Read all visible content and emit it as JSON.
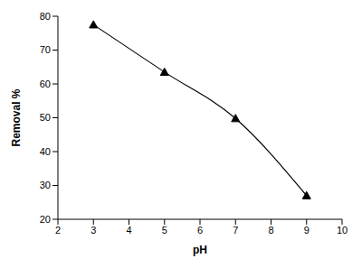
{
  "chart_data": {
    "type": "line",
    "x": [
      3,
      5,
      7,
      9
    ],
    "values": [
      77.5,
      63.5,
      49.8,
      27
    ],
    "color": "#000000",
    "marker": "triangle",
    "line_style": "solid",
    "xlabel": "pH",
    "ylabel": "Removal %",
    "xlim": [
      2,
      10
    ],
    "xticks": [
      2,
      3,
      4,
      5,
      6,
      7,
      8,
      9,
      10
    ],
    "ylim": [
      20,
      80
    ],
    "yticks": [
      20,
      30,
      40,
      50,
      60,
      70,
      80
    ],
    "grid": false
  }
}
